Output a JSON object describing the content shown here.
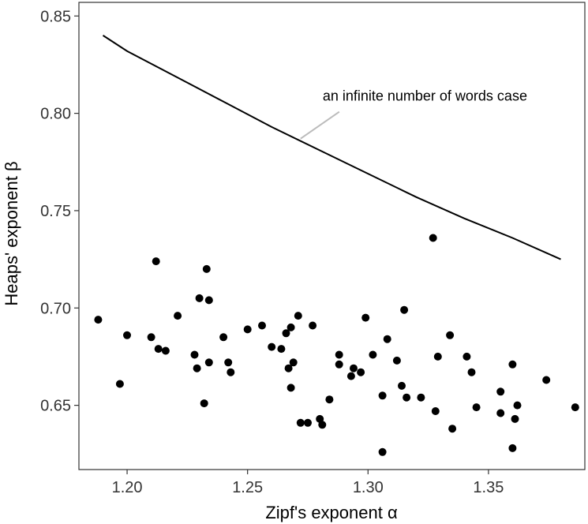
{
  "chart_data": {
    "type": "scatter",
    "title": "",
    "xlabel": "Zipf's exponent α",
    "ylabel": "Heaps' exponent β",
    "xlim": [
      1.18,
      1.39
    ],
    "ylim": [
      0.617,
      0.857
    ],
    "xticks": [
      1.2,
      1.25,
      1.3,
      1.35
    ],
    "xtick_labels": [
      "1.20",
      "1.25",
      "1.30",
      "1.35"
    ],
    "yticks": [
      0.65,
      0.7,
      0.75,
      0.8,
      0.85
    ],
    "ytick_labels": [
      "0.65",
      "0.70",
      "0.75",
      "0.80",
      "0.85"
    ],
    "grid": false,
    "colors": {
      "points": "#000000",
      "curve": "#000000",
      "annotation_leader": "#bbbbbb",
      "axis": "#333333"
    },
    "series": [
      {
        "kind": "line",
        "x": [
          1.19,
          1.2,
          1.22,
          1.24,
          1.26,
          1.28,
          1.3,
          1.32,
          1.34,
          1.36,
          1.38
        ],
        "y": [
          0.84,
          0.832,
          0.819,
          0.806,
          0.793,
          0.781,
          0.769,
          0.757,
          0.746,
          0.736,
          0.725
        ]
      },
      {
        "kind": "points",
        "x": [
          1.188,
          1.197,
          1.2,
          1.21,
          1.213,
          1.212,
          1.216,
          1.221,
          1.228,
          1.229,
          1.23,
          1.232,
          1.233,
          1.234,
          1.234,
          1.24,
          1.242,
          1.243,
          1.25,
          1.256,
          1.26,
          1.264,
          1.266,
          1.267,
          1.268,
          1.268,
          1.269,
          1.271,
          1.272,
          1.275,
          1.277,
          1.28,
          1.281,
          1.284,
          1.288,
          1.288,
          1.293,
          1.294,
          1.297,
          1.299,
          1.302,
          1.306,
          1.306,
          1.308,
          1.312,
          1.314,
          1.315,
          1.316,
          1.322,
          1.327,
          1.328,
          1.329,
          1.334,
          1.335,
          1.341,
          1.343,
          1.345,
          1.355,
          1.355,
          1.36,
          1.36,
          1.361,
          1.362,
          1.374,
          1.386
        ],
        "y": [
          0.694,
          0.661,
          0.686,
          0.685,
          0.679,
          0.724,
          0.678,
          0.696,
          0.676,
          0.669,
          0.705,
          0.651,
          0.72,
          0.704,
          0.672,
          0.685,
          0.672,
          0.667,
          0.689,
          0.691,
          0.68,
          0.679,
          0.687,
          0.669,
          0.69,
          0.659,
          0.672,
          0.696,
          0.641,
          0.641,
          0.691,
          0.643,
          0.64,
          0.653,
          0.676,
          0.671,
          0.665,
          0.669,
          0.667,
          0.695,
          0.676,
          0.655,
          0.626,
          0.684,
          0.673,
          0.66,
          0.699,
          0.654,
          0.654,
          0.736,
          0.647,
          0.675,
          0.686,
          0.638,
          0.675,
          0.667,
          0.649,
          0.657,
          0.646,
          0.671,
          0.628,
          0.643,
          0.65,
          0.663,
          0.649
        ]
      }
    ],
    "annotation": {
      "text": "an infinite number of words case",
      "x": 1.272,
      "y": 0.787
    }
  }
}
